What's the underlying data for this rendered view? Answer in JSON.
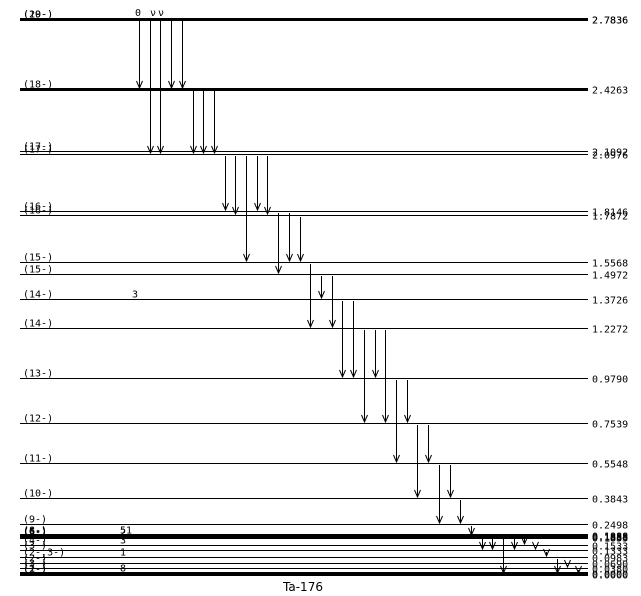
{
  "nucleus": "Ta-176",
  "levels": [
    {
      "spin": "(20-)",
      "energy": "2.7836",
      "e": 2.7836,
      "thick": true
    },
    {
      "spin": "(19-)",
      "energy": "2.7836",
      "e": 2.783,
      "thick": true
    },
    {
      "spin": "(18-)",
      "energy": "2.4263",
      "e": 2.4263,
      "thick": true
    },
    {
      "spin": "(17-)",
      "energy": "2.1092",
      "e": 2.1092
    },
    {
      "spin": "(17-)",
      "energy": "2.0976",
      "e": 2.0976
    },
    {
      "spin": "(16-)",
      "energy": "1.8146",
      "e": 1.8146
    },
    {
      "spin": "(16-)",
      "energy": "1.7872",
      "e": 1.7872
    },
    {
      "spin": "(15-)",
      "energy": "1.5568",
      "e": 1.5568
    },
    {
      "spin": "(15-)",
      "energy": "1.4972",
      "e": 1.4972
    },
    {
      "spin": "(14-)",
      "energy": "1.3726",
      "e": 1.3726,
      "lifetime": "3"
    },
    {
      "spin": "(14-)",
      "energy": "1.2272",
      "e": 1.2272
    },
    {
      "spin": "(13-)",
      "energy": "0.9790",
      "e": 0.979
    },
    {
      "spin": "(12-)",
      "energy": "0.7539",
      "e": 0.7539
    },
    {
      "spin": "(11-)",
      "energy": "0.5548",
      "e": 0.5548
    },
    {
      "spin": "(10-)",
      "energy": "0.3843",
      "e": 0.3843
    },
    {
      "spin": "(9-)",
      "energy": "0.2498",
      "e": 0.2498
    },
    {
      "spin": "(8-)",
      "energy": "0.1888",
      "e": 0.1888,
      "thick": true,
      "lifetime": "51"
    },
    {
      "spin": "(6-)",
      "energy": "0.1858",
      "e": 0.1858,
      "thick": true
    },
    {
      "spin": "(6-)",
      "energy": "0.1888",
      "e": 0.185,
      "thick": true
    },
    {
      "spin": "(5-)",
      "energy": "0.1833",
      "e": 0.1833,
      "thick": true,
      "lifetime": "2"
    },
    {
      "spin": "(4-)",
      "energy": "0.1533",
      "e": 0.1533,
      "lifetime": "3"
    },
    {
      "spin": "(3-)",
      "energy": "0.1333",
      "e": 0.1333
    },
    {
      "spin": "(2-,3-)",
      "energy": "0.0983",
      "e": 0.0983,
      "lifetime": "1"
    },
    {
      "spin": "(2-)",
      "energy": "0.0690",
      "e": 0.069
    },
    {
      "spin": "(3-)",
      "energy": "0.0380",
      "e": 0.038
    },
    {
      "spin": "(1-)",
      "energy": "0.0000",
      "e": 0.005,
      "thick": true,
      "lifetime": "8"
    },
    {
      "spin": "(2-)",
      "energy": "0.0000",
      "e": 0.0,
      "thick": true
    }
  ],
  "top_markers": [
    "0",
    "ν",
    "ν"
  ],
  "transitions": [
    {
      "from": 2.7836,
      "to": 2.4263
    },
    {
      "from": 2.7836,
      "to": 2.0976
    },
    {
      "from": 2.7836,
      "to": 2.0976
    },
    {
      "from": 2.7836,
      "to": 2.4263
    },
    {
      "from": 2.7836,
      "to": 2.4263
    },
    {
      "from": 2.4263,
      "to": 2.0976
    },
    {
      "from": 2.4263,
      "to": 2.0976
    },
    {
      "from": 2.4263,
      "to": 2.0976
    },
    {
      "from": 2.0976,
      "to": 1.8146
    },
    {
      "from": 2.0976,
      "to": 1.7872
    },
    {
      "from": 2.0976,
      "to": 1.5568
    },
    {
      "from": 2.0976,
      "to": 1.8146
    },
    {
      "from": 2.0976,
      "to": 1.7872
    },
    {
      "from": 1.8146,
      "to": 1.4972
    },
    {
      "from": 1.8146,
      "to": 1.5568
    },
    {
      "from": 1.7872,
      "to": 1.5568
    },
    {
      "from": 1.5568,
      "to": 1.2272
    },
    {
      "from": 1.4972,
      "to": 1.3726
    },
    {
      "from": 1.4972,
      "to": 1.2272
    },
    {
      "from": 1.3726,
      "to": 0.979
    },
    {
      "from": 1.3726,
      "to": 0.979
    },
    {
      "from": 1.2272,
      "to": 0.7539
    },
    {
      "from": 1.2272,
      "to": 0.979
    },
    {
      "from": 1.2272,
      "to": 0.7539
    },
    {
      "from": 0.979,
      "to": 0.5548
    },
    {
      "from": 0.979,
      "to": 0.7539
    },
    {
      "from": 0.7539,
      "to": 0.3843
    },
    {
      "from": 0.7539,
      "to": 0.5548
    },
    {
      "from": 0.5548,
      "to": 0.2498
    },
    {
      "from": 0.5548,
      "to": 0.3843
    },
    {
      "from": 0.3843,
      "to": 0.2498
    },
    {
      "from": 0.2498,
      "to": 0.1858
    },
    {
      "from": 0.1858,
      "to": 0.1333
    },
    {
      "from": 0.1858,
      "to": 0.1333
    },
    {
      "from": 0.1858,
      "to": 0.0
    },
    {
      "from": 0.1858,
      "to": 0.1333
    },
    {
      "from": 0.1858,
      "to": 0.1533
    },
    {
      "from": 0.1533,
      "to": 0.1333
    },
    {
      "from": 0.1333,
      "to": 0.0983
    },
    {
      "from": 0.0983,
      "to": 0.0
    },
    {
      "from": 0.069,
      "to": 0.038
    },
    {
      "from": 0.038,
      "to": 0.0
    }
  ]
}
